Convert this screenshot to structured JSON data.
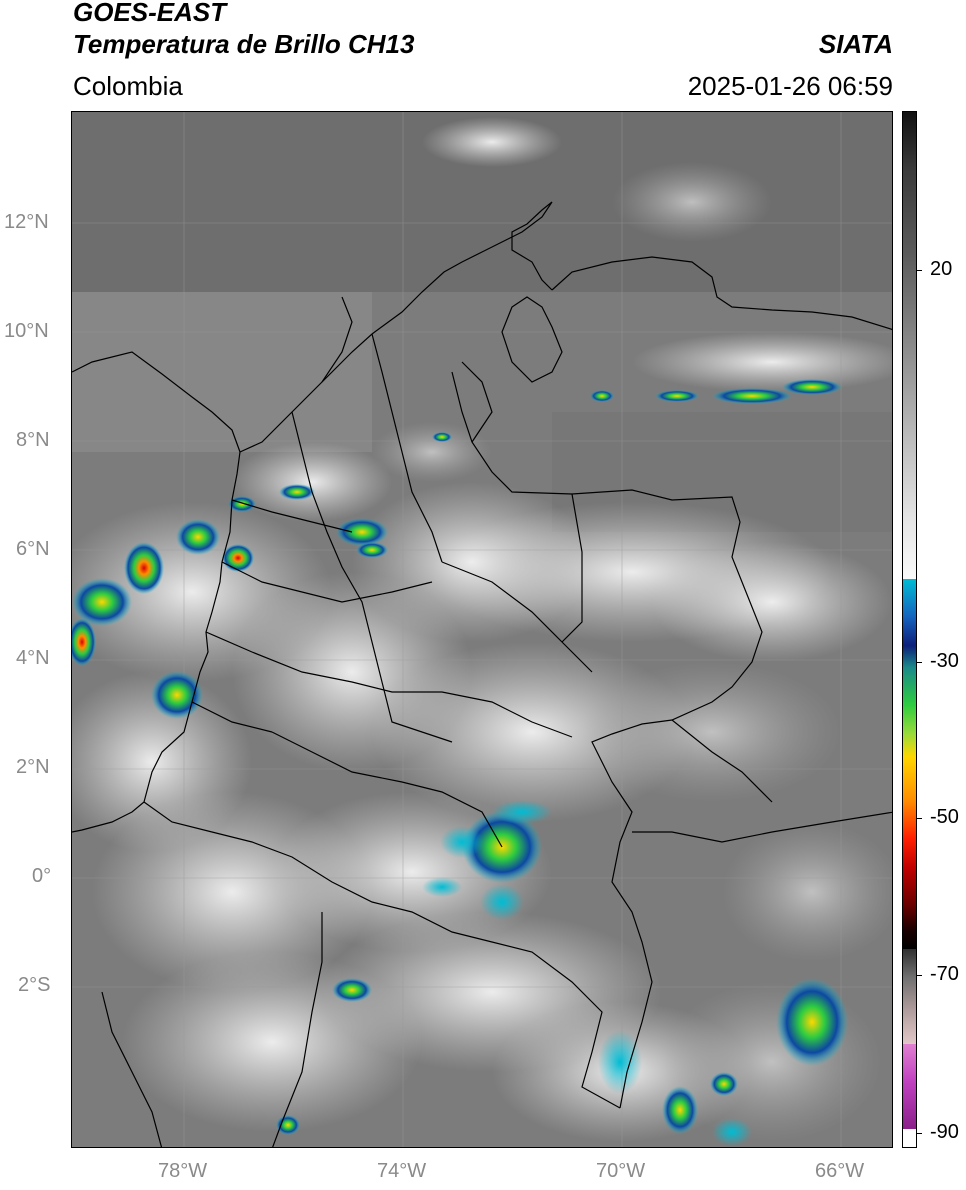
{
  "header": {
    "satellite": "GOES-EAST",
    "product": "Temperatura de Brillo CH13",
    "agency": "SIATA",
    "region": "Colombia",
    "datetime": "2025-01-26 06:59"
  },
  "map": {
    "lat_labels": [
      "12°N",
      "10°N",
      "8°N",
      "6°N",
      "4°N",
      "2°N",
      "0°",
      "2°S"
    ],
    "lon_labels": [
      "78°W",
      "74°W",
      "70°W",
      "66°W"
    ]
  },
  "colorbar": {
    "tick_labels": [
      "20",
      "-30",
      "-50",
      "-70",
      "-90"
    ],
    "colors": {
      "warm_gray": "#7a7a7a",
      "cloud_white": "#e8e8e8",
      "cyan": "#00bcd4",
      "blue": "#1a237e",
      "green": "#2ecc40",
      "yellow": "#ffd700",
      "orange": "#ff8c00",
      "red": "#d50000",
      "magenta": "#c040c0"
    }
  }
}
